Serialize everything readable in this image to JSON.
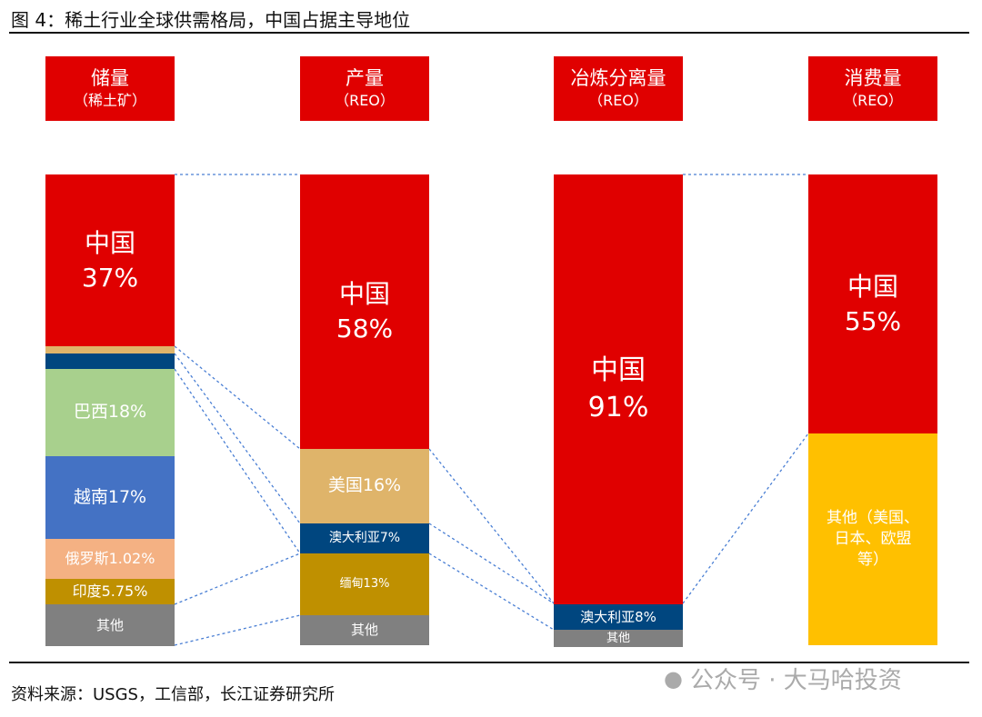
{
  "title": "图 4：稀土行业全球供需格局，中国占据主导地位",
  "source": "资料来源：USGS，工信部，长江证券研究所",
  "watermark": "公众号 · 大马哈投资",
  "chart_data": {
    "type": "stacked-bar",
    "columns": [
      {
        "header": "储量",
        "subheader": "（稀土矿）",
        "segments": [
          {
            "label": "中国",
            "value": "37%",
            "color": "#e00000"
          },
          {
            "label": "",
            "value": "",
            "color": "#dfb46a"
          },
          {
            "label": "",
            "value": "",
            "color": "#00467f"
          },
          {
            "label": "巴西18%",
            "value": "",
            "color": "#a8d08d"
          },
          {
            "label": "越南17%",
            "value": "",
            "color": "#4472c4"
          },
          {
            "label": "俄罗斯1.02%",
            "value": "",
            "color": "#f4b183"
          },
          {
            "label": "印度5.75%",
            "value": "",
            "color": "#bf9000"
          },
          {
            "label": "其他",
            "value": "",
            "color": "#808080"
          }
        ]
      },
      {
        "header": "产量",
        "subheader": "（REO）",
        "segments": [
          {
            "label": "中国",
            "value": "58%",
            "color": "#e00000"
          },
          {
            "label": "美国16%",
            "value": "",
            "color": "#dfb46a"
          },
          {
            "label": "澳大利亚7%",
            "value": "",
            "color": "#00467f"
          },
          {
            "label": "缅甸13%",
            "value": "",
            "color": "#bf9000"
          },
          {
            "label": "其他",
            "value": "",
            "color": "#808080"
          }
        ]
      },
      {
        "header": "冶炼分离量",
        "subheader": "（REO）",
        "segments": [
          {
            "label": "中国",
            "value": "91%",
            "color": "#e00000"
          },
          {
            "label": "澳大利亚8%",
            "value": "",
            "color": "#00467f"
          },
          {
            "label": "其他",
            "value": "",
            "color": "#808080"
          }
        ]
      },
      {
        "header": "消费量",
        "subheader": "（REO）",
        "segments": [
          {
            "label": "中国",
            "value": "55%",
            "color": "#e00000"
          },
          {
            "label": "其他（美国、日本、欧盟等）",
            "value": "",
            "color": "#ffc000"
          }
        ]
      }
    ]
  }
}
